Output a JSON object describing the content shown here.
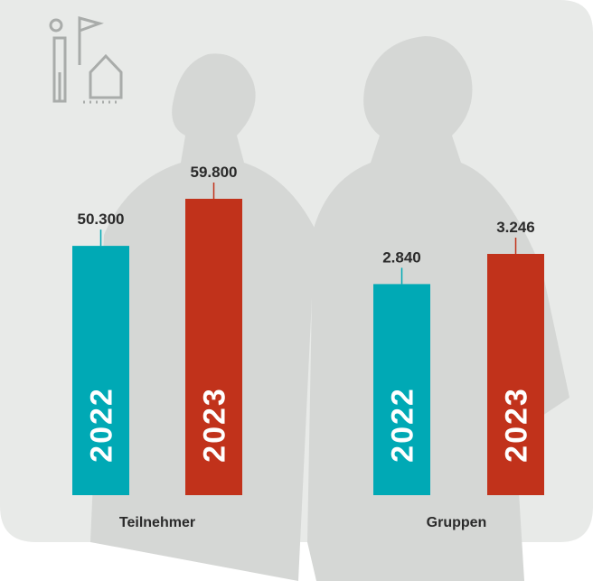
{
  "chart_data": [
    {
      "type": "bar",
      "categories": [
        "2022",
        "2023"
      ],
      "values": [
        50300,
        59800
      ],
      "value_labels": [
        "50.300",
        "59.800"
      ],
      "colors": [
        "#00a9b5",
        "#c1321b"
      ],
      "xlabel": "Teilnehmer"
    },
    {
      "type": "bar",
      "categories": [
        "2022",
        "2023"
      ],
      "values": [
        2840,
        3246
      ],
      "value_labels": [
        "2.840",
        "3.246"
      ],
      "colors": [
        "#00a9b5",
        "#c1321b"
      ],
      "xlabel": "Gruppen"
    }
  ]
}
